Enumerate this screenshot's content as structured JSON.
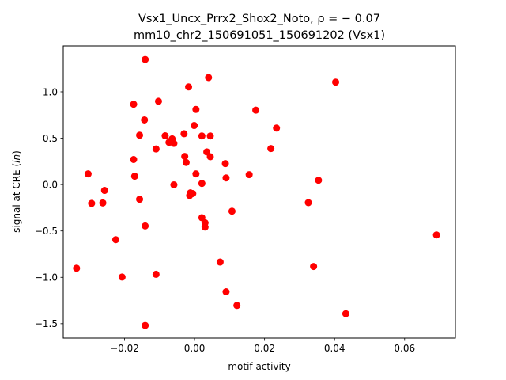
{
  "chart_data": {
    "type": "scatter",
    "title_line1": "Vsx1_Uncx_Prrx2_Shox2_Noto, ρ = − 0.07",
    "title_line2": "mm10_chr2_150691051_150691202 (Vsx1)",
    "xlabel": "motif activity",
    "ylabel": "signal at CRE (ln)",
    "xlim": [
      -0.0375,
      0.0745
    ],
    "ylim": [
      -1.655,
      1.495
    ],
    "xticks": [
      -0.02,
      0.0,
      0.02,
      0.04,
      0.06
    ],
    "xtick_labels": [
      "−0.02",
      "0.00",
      "0.02",
      "0.04",
      "0.06"
    ],
    "yticks": [
      -1.5,
      -1.0,
      -0.5,
      0.0,
      0.5,
      1.0
    ],
    "ytick_labels": [
      "−1.5",
      "−1.0",
      "−0.5",
      "0.0",
      "0.5",
      "1.0"
    ],
    "grid": false,
    "marker_color": "#ff0000",
    "points": [
      {
        "x": -0.0337,
        "y": -0.902
      },
      {
        "x": -0.0304,
        "y": 0.115
      },
      {
        "x": -0.0294,
        "y": -0.203
      },
      {
        "x": -0.0262,
        "y": -0.198
      },
      {
        "x": -0.0257,
        "y": -0.063
      },
      {
        "x": -0.0225,
        "y": -0.594
      },
      {
        "x": -0.0207,
        "y": -0.997
      },
      {
        "x": -0.0174,
        "y": 0.866
      },
      {
        "x": -0.0174,
        "y": 0.27
      },
      {
        "x": -0.0171,
        "y": 0.09
      },
      {
        "x": -0.0157,
        "y": 0.532
      },
      {
        "x": -0.0157,
        "y": -0.158
      },
      {
        "x": -0.0141,
        "y": 1.349
      },
      {
        "x": -0.0143,
        "y": 0.697
      },
      {
        "x": -0.0141,
        "y": -0.446
      },
      {
        "x": -0.0141,
        "y": -1.519
      },
      {
        "x": -0.011,
        "y": 0.384
      },
      {
        "x": -0.011,
        "y": -0.967
      },
      {
        "x": -0.0103,
        "y": 0.898
      },
      {
        "x": -0.0084,
        "y": 0.526
      },
      {
        "x": -0.0073,
        "y": 0.455
      },
      {
        "x": -0.0066,
        "y": 0.478
      },
      {
        "x": -0.0064,
        "y": 0.493
      },
      {
        "x": -0.0059,
        "y": 0.444
      },
      {
        "x": -0.0059,
        "y": -0.003
      },
      {
        "x": -0.003,
        "y": 0.548
      },
      {
        "x": -0.0028,
        "y": 0.303
      },
      {
        "x": -0.0024,
        "y": 0.238
      },
      {
        "x": -0.0017,
        "y": 1.053
      },
      {
        "x": -0.0014,
        "y": -0.118
      },
      {
        "x": -0.0012,
        "y": -0.09
      },
      {
        "x": -0.0005,
        "y": -0.097
      },
      {
        "x": -0.0001,
        "y": 0.637
      },
      {
        "x": 0.0004,
        "y": 0.81
      },
      {
        "x": 0.0004,
        "y": 0.115
      },
      {
        "x": 0.0021,
        "y": 0.524
      },
      {
        "x": 0.0021,
        "y": 0.012
      },
      {
        "x": 0.0021,
        "y": -0.357
      },
      {
        "x": 0.003,
        "y": -0.412
      },
      {
        "x": 0.003,
        "y": -0.458
      },
      {
        "x": 0.0035,
        "y": 0.352
      },
      {
        "x": 0.004,
        "y": 1.154
      },
      {
        "x": 0.0045,
        "y": 0.3
      },
      {
        "x": 0.0045,
        "y": 0.524
      },
      {
        "x": 0.0073,
        "y": -0.836
      },
      {
        "x": 0.0088,
        "y": 0.226
      },
      {
        "x": 0.009,
        "y": 0.072
      },
      {
        "x": 0.009,
        "y": -1.156
      },
      {
        "x": 0.0107,
        "y": -0.287
      },
      {
        "x": 0.0121,
        "y": -1.303
      },
      {
        "x": 0.0156,
        "y": 0.107
      },
      {
        "x": 0.0175,
        "y": 0.802
      },
      {
        "x": 0.0218,
        "y": 0.388
      },
      {
        "x": 0.0234,
        "y": 0.609
      },
      {
        "x": 0.0325,
        "y": -0.195
      },
      {
        "x": 0.034,
        "y": -0.883
      },
      {
        "x": 0.0354,
        "y": 0.046
      },
      {
        "x": 0.0403,
        "y": 1.105
      },
      {
        "x": 0.0432,
        "y": -1.392
      },
      {
        "x": 0.0691,
        "y": -0.543
      }
    ]
  }
}
